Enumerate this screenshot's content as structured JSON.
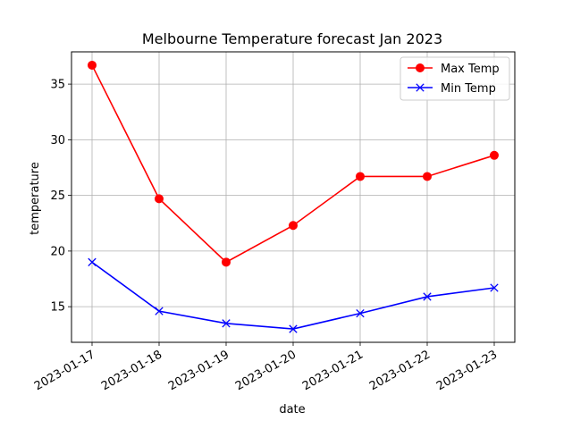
{
  "chart_data": {
    "type": "line",
    "title": "Melbourne Temperature forecast Jan 2023",
    "xlabel": "date",
    "ylabel": "temperature",
    "categories": [
      "2023-01-17",
      "2023-01-18",
      "2023-01-19",
      "2023-01-20",
      "2023-01-21",
      "2023-01-22",
      "2023-01-23"
    ],
    "series": [
      {
        "name": "Max Temp",
        "values": [
          36.7,
          24.7,
          19.0,
          22.3,
          26.7,
          26.7,
          28.6
        ],
        "color": "#ff0000",
        "marker": "circle"
      },
      {
        "name": "Min Temp",
        "values": [
          19.0,
          14.6,
          13.5,
          13.0,
          14.4,
          15.9,
          16.7
        ],
        "color": "#0000ff",
        "marker": "x"
      }
    ],
    "ylim": [
      11.8,
      37.9
    ],
    "yticks": [
      15,
      20,
      25,
      30,
      35
    ],
    "grid": true,
    "legend": "top-right"
  }
}
